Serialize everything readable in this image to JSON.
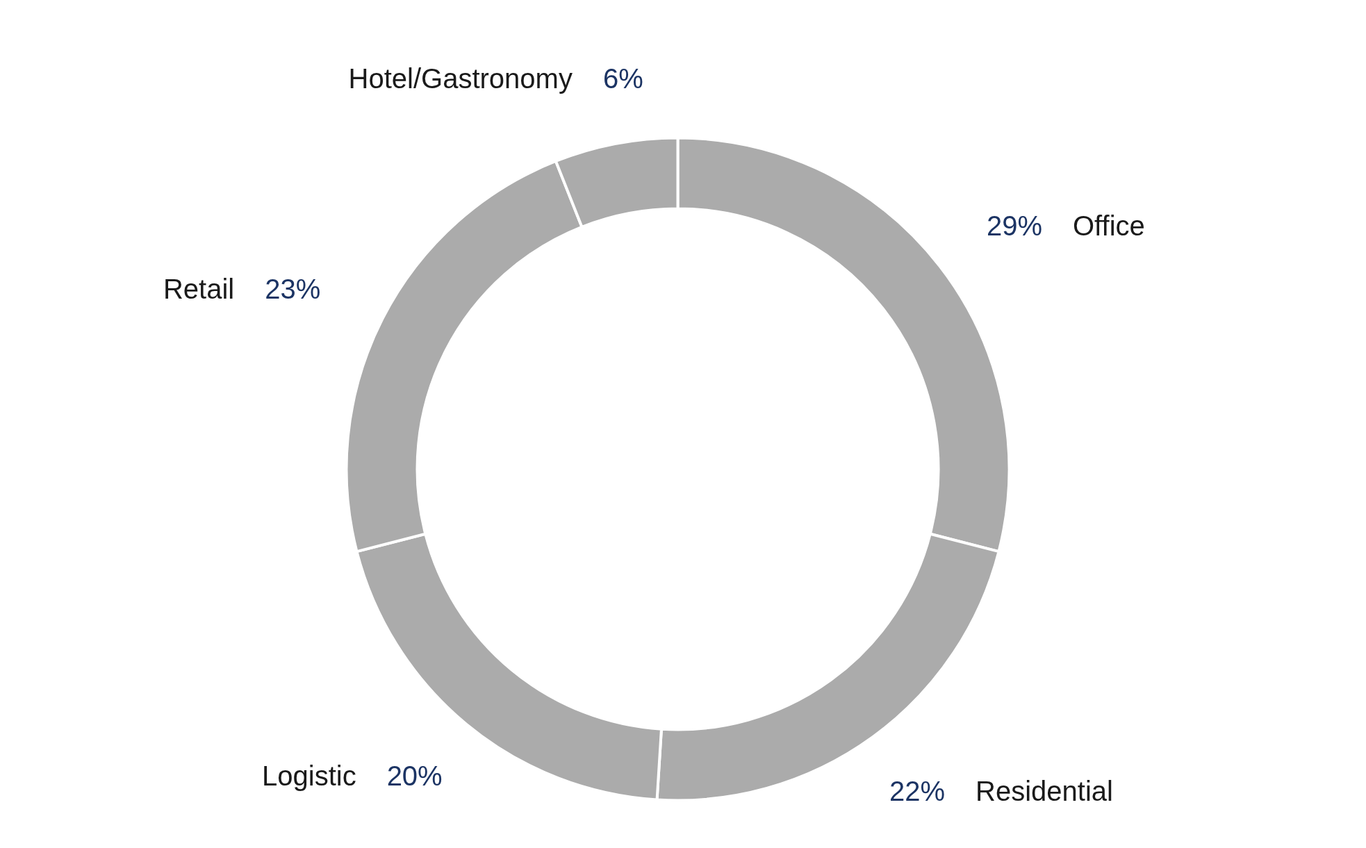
{
  "chart_data": {
    "type": "donut",
    "categories": [
      "Office",
      "Residential",
      "Logistic",
      "Retail",
      "Hotel/Gastronomy"
    ],
    "values": [
      29,
      22,
      20,
      23,
      6
    ],
    "colors": [
      "#ababab",
      "#ababab",
      "#ababab",
      "#ababab",
      "#ababab"
    ],
    "value_labels": [
      "29%",
      "22%",
      "20%",
      "23%",
      "6%"
    ]
  }
}
